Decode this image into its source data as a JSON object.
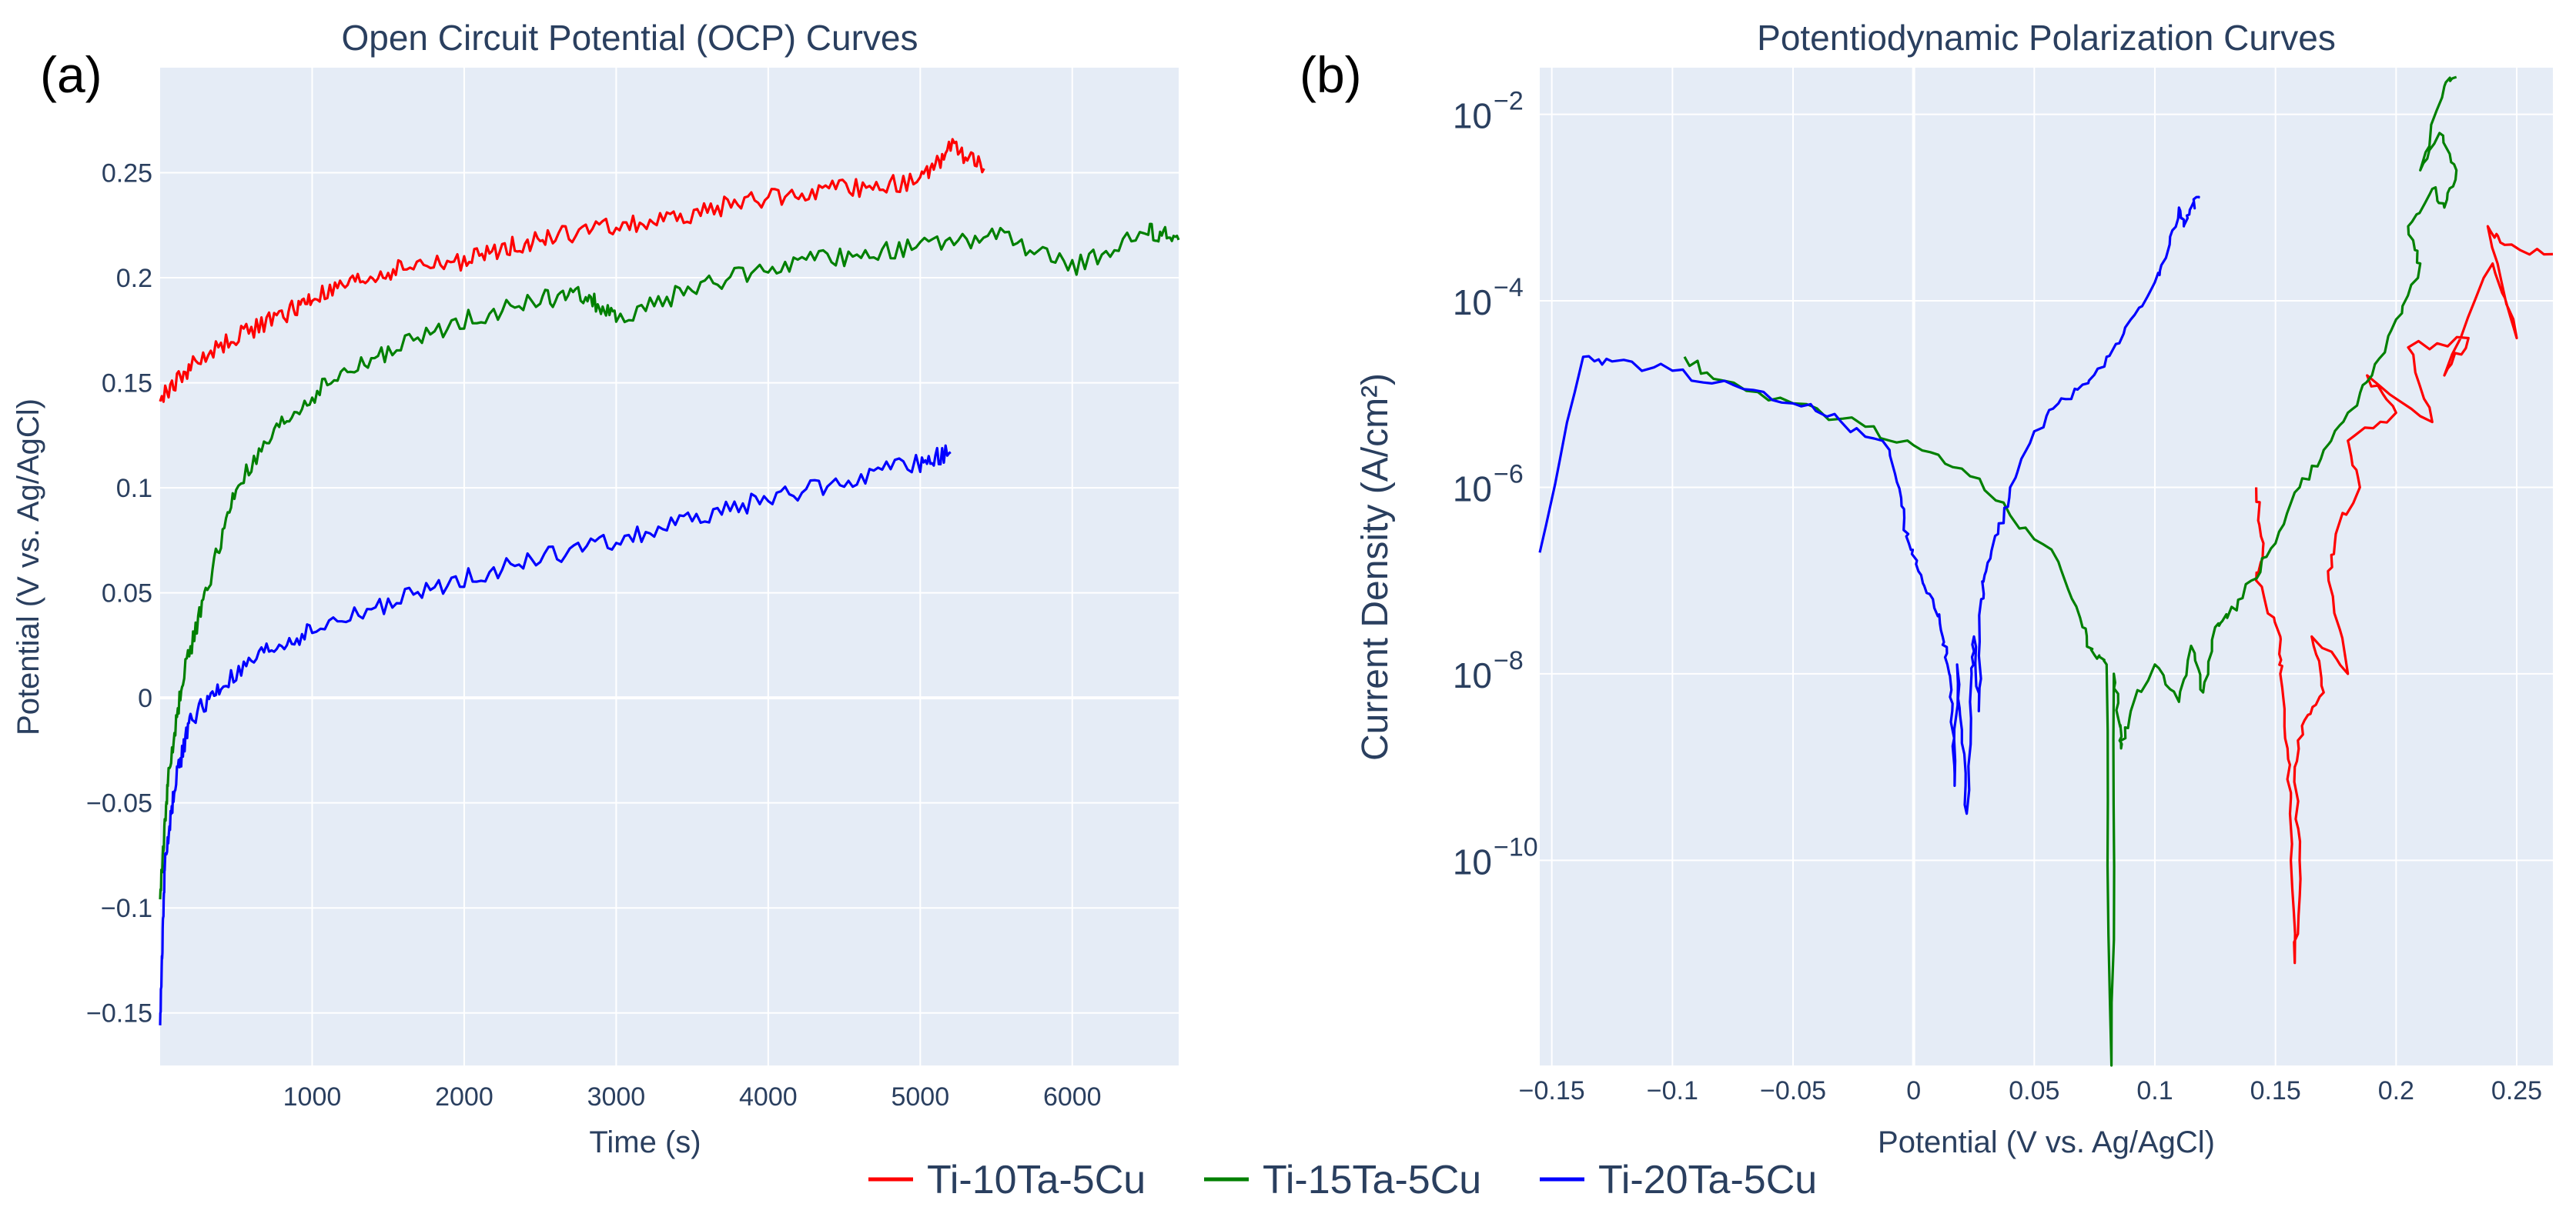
{
  "colors": {
    "plot_bg": "#e5ecf6",
    "grid": "#ffffff",
    "text": "#2a3f5f",
    "Ti-10Ta-5Cu": "#ff0000",
    "Ti-15Ta-5Cu": "#008000",
    "Ti-20Ta-5Cu": "#0000ff"
  },
  "legend": [
    "Ti-10Ta-5Cu",
    "Ti-15Ta-5Cu",
    "Ti-20Ta-5Cu"
  ],
  "chart_data": [
    {
      "panel": "(a)",
      "type": "line",
      "title": "Open Circuit Potential (OCP) Curves",
      "xlabel": "Time (s)",
      "ylabel": "Potential (V vs. Ag/AgCl)",
      "xlim": [
        0,
        6700
      ],
      "ylim": [
        -0.175,
        0.3
      ],
      "xticks": [
        1000,
        2000,
        3000,
        4000,
        5000,
        6000
      ],
      "xtick_labels": [
        "1000",
        "2000",
        "3000",
        "4000",
        "5000",
        "6000"
      ],
      "yticks": [
        -0.15,
        -0.1,
        -0.05,
        0,
        0.05,
        0.1,
        0.15,
        0.2,
        0.25
      ],
      "ytick_labels": [
        "−0.15",
        "−0.1",
        "−0.05",
        "0",
        "0.05",
        "0.1",
        "0.15",
        "0.2",
        "0.25"
      ],
      "grid": true,
      "series": [
        {
          "name": "Ti-10Ta-5Cu",
          "x": [
            0,
            200,
            500,
            800,
            1000,
            1300,
            1600,
            2000,
            2300,
            2600,
            3000,
            3400,
            3800,
            4200,
            4600,
            5000,
            5200,
            5420
          ],
          "y": [
            0.142,
            0.158,
            0.172,
            0.182,
            0.19,
            0.198,
            0.205,
            0.208,
            0.215,
            0.22,
            0.225,
            0.228,
            0.236,
            0.24,
            0.243,
            0.246,
            0.262,
            0.252
          ]
        },
        {
          "name": "Ti-15Ta-5Cu",
          "x": [
            0,
            50,
            150,
            300,
            500,
            800,
            1100,
            1500,
            2000,
            2500,
            2800,
            3000,
            3500,
            4000,
            4500,
            5000,
            5500,
            6000,
            6500,
            6700
          ],
          "y": [
            -0.095,
            -0.04,
            0.01,
            0.05,
            0.1,
            0.13,
            0.15,
            0.165,
            0.18,
            0.19,
            0.192,
            0.18,
            0.195,
            0.205,
            0.21,
            0.215,
            0.22,
            0.205,
            0.222,
            0.218
          ]
        },
        {
          "name": "Ti-20Ta-5Cu",
          "x": [
            0,
            30,
            100,
            200,
            400,
            700,
            1000,
            1500,
            2000,
            2500,
            3000,
            3500,
            4000,
            4500,
            5000,
            5200
          ],
          "y": [
            -0.155,
            -0.08,
            -0.04,
            -0.01,
            0.005,
            0.022,
            0.032,
            0.045,
            0.057,
            0.067,
            0.075,
            0.085,
            0.095,
            0.103,
            0.112,
            0.117
          ]
        }
      ]
    },
    {
      "panel": "(b)",
      "type": "line",
      "title": "Potentiodynamic Polarization Curves",
      "xlabel": "Potential (V vs. Ag/AgCl)",
      "ylabel": "Current Density (A/cm²)",
      "y_scale": "log",
      "xlim": [
        -0.155,
        0.265
      ],
      "ylim_log10": [
        -12.2,
        -1.5
      ],
      "xticks": [
        -0.15,
        -0.1,
        -0.05,
        0,
        0.05,
        0.1,
        0.15,
        0.2,
        0.25
      ],
      "xtick_labels": [
        "−0.15",
        "−0.1",
        "−0.05",
        "0",
        "0.05",
        "0.1",
        "0.15",
        "0.2",
        "0.25"
      ],
      "yticks_log10": [
        -10,
        -8,
        -6,
        -4,
        -2
      ],
      "ytick_labels": [
        "10",
        "10",
        "10",
        "10",
        "10"
      ],
      "ytick_exponents": [
        "−10",
        "−8",
        "−6",
        "−4",
        "−2"
      ],
      "grid": true,
      "series": [
        {
          "name": "Ti-10Ta-5Cu",
          "x": [
            0.142,
            0.145,
            0.142,
            0.152,
            0.152,
            0.155,
            0.156,
            0.158,
            0.16,
            0.158,
            0.162,
            0.17,
            0.165,
            0.18,
            0.172,
            0.175,
            0.185,
            0.18,
            0.2,
            0.188,
            0.215,
            0.205,
            0.23,
            0.22,
            0.24,
            0.25,
            0.238,
            0.245,
            0.265
          ],
          "y": [
            -6.0,
            -6.6,
            -7.0,
            -7.6,
            -8.0,
            -8.8,
            -9.5,
            -11.1,
            -10.0,
            -9.0,
            -8.5,
            -8.2,
            -7.6,
            -8.0,
            -7.0,
            -6.5,
            -6.0,
            -5.5,
            -5.2,
            -4.8,
            -5.3,
            -4.5,
            -4.4,
            -4.8,
            -3.6,
            -4.4,
            -3.2,
            -3.4,
            -3.5
          ]
        },
        {
          "name": "Ti-15Ta-5Cu",
          "x": [
            -0.095,
            -0.08,
            -0.05,
            -0.02,
            0.0,
            0.02,
            0.04,
            0.06,
            0.07,
            0.075,
            0.08,
            0.082,
            0.083,
            0.085,
            0.086,
            0.09,
            0.1,
            0.11,
            0.115,
            0.12,
            0.125,
            0.13,
            0.14,
            0.15,
            0.16,
            0.17,
            0.18,
            0.19,
            0.2,
            0.21,
            0.205,
            0.215,
            0.22,
            0.225,
            0.218,
            0.21,
            0.22,
            0.225
          ],
          "y": [
            -4.6,
            -4.85,
            -5.1,
            -5.35,
            -5.55,
            -5.8,
            -6.3,
            -6.8,
            -7.5,
            -7.8,
            -7.9,
            -12.2,
            -8.0,
            -8.5,
            -8.8,
            -8.4,
            -7.9,
            -8.3,
            -7.7,
            -8.2,
            -7.5,
            -7.4,
            -7.0,
            -6.6,
            -6.0,
            -5.6,
            -5.2,
            -4.8,
            -4.2,
            -3.6,
            -3.2,
            -2.8,
            -3.0,
            -2.6,
            -2.2,
            -2.6,
            -1.7,
            -1.6
          ]
        },
        {
          "name": "Ti-20Ta-5Cu",
          "x": [
            -0.155,
            -0.137,
            -0.125,
            -0.1,
            -0.075,
            -0.05,
            -0.03,
            -0.01,
            -0.005,
            -0.002,
            0.002,
            0.008,
            0.012,
            0.014,
            0.016,
            0.017,
            0.018,
            0.02,
            0.022,
            0.024,
            0.025,
            0.027,
            0.028,
            0.03,
            0.035,
            0.04,
            0.05,
            0.06,
            0.07,
            0.08,
            0.09,
            0.1,
            0.105,
            0.11,
            0.112,
            0.115,
            0.118
          ],
          "y": [
            -6.7,
            -4.6,
            -4.65,
            -4.75,
            -4.9,
            -5.1,
            -5.3,
            -5.6,
            -6.2,
            -6.6,
            -6.9,
            -7.2,
            -7.6,
            -7.9,
            -8.4,
            -9.2,
            -7.9,
            -8.6,
            -9.5,
            -8.0,
            -7.6,
            -8.4,
            -7.2,
            -6.9,
            -6.5,
            -6.0,
            -5.4,
            -5.1,
            -4.9,
            -4.6,
            -4.2,
            -3.8,
            -3.5,
            -3.0,
            -3.2,
            -3.0,
            -2.9
          ]
        }
      ]
    }
  ]
}
